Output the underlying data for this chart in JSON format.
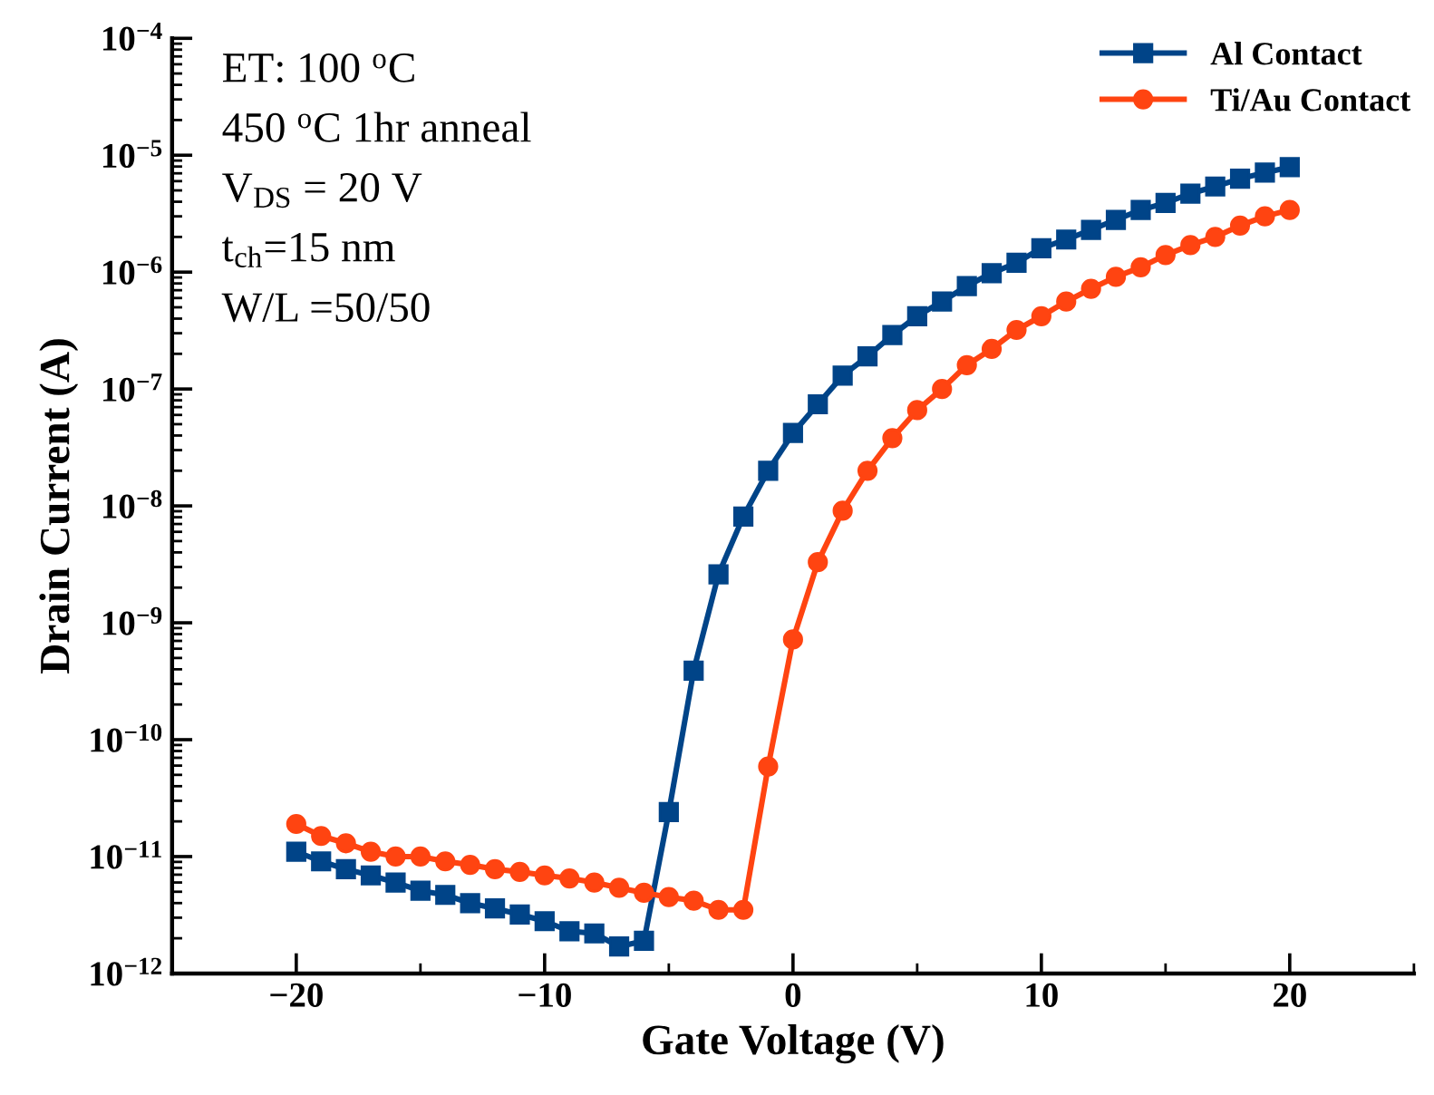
{
  "chart_data": {
    "type": "line",
    "xlabel": "Gate Voltage (V)",
    "ylabel": "Drain Current (A)",
    "x": [
      -20,
      -19,
      -18,
      -17,
      -16,
      -15,
      -14,
      -13,
      -12,
      -11,
      -10,
      -9,
      -8,
      -7,
      -6,
      -5,
      -4,
      -3,
      -2,
      -1,
      0,
      1,
      2,
      3,
      4,
      5,
      6,
      7,
      8,
      9,
      10,
      11,
      12,
      13,
      14,
      15,
      16,
      17,
      18,
      19,
      20
    ],
    "series": [
      {
        "name": "Al Contact",
        "color": "#004488",
        "marker": "square",
        "values": [
          1.1e-11,
          9.1e-12,
          7.8e-12,
          6.9e-12,
          6e-12,
          5.1e-12,
          4.7e-12,
          4e-12,
          3.6e-12,
          3.2e-12,
          2.8e-12,
          2.3e-12,
          2.2e-12,
          1.7e-12,
          1.9e-12,
          2.4e-11,
          3.9e-10,
          2.6e-09,
          8.1e-09,
          2e-08,
          4.2e-08,
          7.4e-08,
          1.3e-07,
          1.9e-07,
          2.9e-07,
          4.2e-07,
          5.6e-07,
          7.6e-07,
          9.8e-07,
          1.2e-06,
          1.6e-06,
          1.9e-06,
          2.3e-06,
          2.8e-06,
          3.4e-06,
          3.9e-06,
          4.7e-06,
          5.4e-06,
          6.3e-06,
          7.1e-06,
          7.9e-06
        ]
      },
      {
        "name": "Ti/Au Contact",
        "color": "#ff4411",
        "marker": "circle",
        "values": [
          1.9e-11,
          1.5e-11,
          1.3e-11,
          1.1e-11,
          1e-11,
          1e-11,
          9.1e-12,
          8.5e-12,
          7.8e-12,
          7.4e-12,
          6.9e-12,
          6.5e-12,
          6e-12,
          5.4e-12,
          4.9e-12,
          4.5e-12,
          4.2e-12,
          3.5e-12,
          3.5e-12,
          5.9e-11,
          7.2e-10,
          3.3e-09,
          9.1e-09,
          2e-08,
          3.8e-08,
          6.6e-08,
          1e-07,
          1.6e-07,
          2.2e-07,
          3.2e-07,
          4.2e-07,
          5.6e-07,
          7.2e-07,
          9.1e-07,
          1.1e-06,
          1.4e-06,
          1.7e-06,
          2e-06,
          2.5e-06,
          3e-06,
          3.4e-06
        ]
      }
    ],
    "log": "y",
    "xlim": [
      -25,
      25
    ],
    "xticks": [
      {
        "value": -20,
        "label": "−20"
      },
      {
        "value": -10,
        "label": "−10"
      },
      0,
      10,
      20
    ],
    "ylim": [
      1e-12,
      0.0001
    ],
    "yticks": [
      {
        "value": 1e-12,
        "label": "10$^{−12}$"
      },
      {
        "value": 1e-11,
        "label": "10$^{−11}$"
      },
      {
        "value": 1e-10,
        "label": "10$^{−10}$"
      },
      {
        "value": 1e-09,
        "label": "10$^{−9}$"
      },
      {
        "value": 1e-08,
        "label": "10$^{−8}$"
      },
      {
        "value": 1e-07,
        "label": "10$^{−7}$"
      },
      {
        "value": 1e-06,
        "label": "10$^{−6}$"
      },
      {
        "value": 1e-05,
        "label": "10$^{−5}$"
      },
      {
        "value": 0.0001,
        "label": "10$^{−4}$"
      }
    ],
    "grid": false,
    "legend": "top right",
    "line_style": "solid",
    "annotations": [
      "ET: 100 $^{o}$C",
      "450 $^{o}$C 1hr anneal",
      "V$_{DS}$ = 20 V",
      "t$_{ch}$=15 nm",
      "W/L =50/50"
    ]
  }
}
